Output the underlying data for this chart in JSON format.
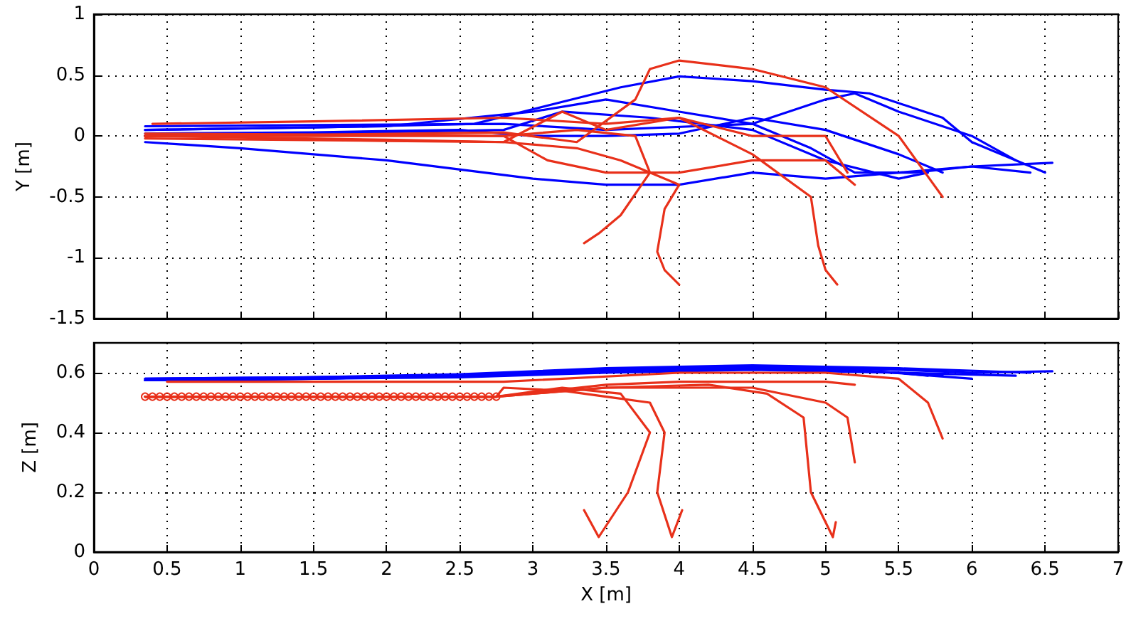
{
  "chart_data": [
    {
      "type": "line",
      "ylabel": "Y [m]",
      "xlim": [
        0,
        7
      ],
      "xticks": [
        0,
        0.5,
        1,
        1.5,
        2,
        2.5,
        3,
        3.5,
        4,
        4.5,
        5,
        5.5,
        6,
        6.5,
        7
      ],
      "ylim": [
        -1.5,
        1
      ],
      "yticks": [
        -1.5,
        -1,
        -0.5,
        0,
        0.5,
        1
      ],
      "tick_labels": "y",
      "grid": true,
      "marker": "none",
      "line_style": "solid",
      "series": [
        {
          "color": "#0000ff",
          "x": [
            0.35,
            1.5,
            2.6,
            3.2,
            3.6,
            4.0,
            4.5,
            5.0,
            5.3,
            5.8,
            6.0,
            6.5
          ],
          "values": [
            0.05,
            0.07,
            0.1,
            0.28,
            0.4,
            0.49,
            0.45,
            0.38,
            0.35,
            0.15,
            -0.05,
            -0.3
          ]
        },
        {
          "color": "#0000ff",
          "x": [
            0.35,
            2.0,
            3.0,
            3.5,
            4.0,
            4.5,
            5.0,
            5.2,
            5.5,
            6.0,
            6.3
          ],
          "values": [
            0.05,
            0.08,
            0.2,
            0.3,
            0.2,
            0.1,
            0.3,
            0.35,
            0.2,
            0,
            -0.2
          ]
        },
        {
          "color": "#0000ff",
          "x": [
            0.35,
            1.0,
            2.0,
            3.0,
            3.5,
            4.0,
            4.5,
            5.0,
            5.5,
            6.0,
            6.55
          ],
          "values": [
            -0.05,
            -0.1,
            -0.2,
            -0.35,
            -0.4,
            -0.4,
            -0.3,
            -0.35,
            -0.3,
            -0.25,
            -0.22
          ]
        },
        {
          "color": "#0000ff",
          "x": [
            0.35,
            1.5,
            2.5,
            3.0,
            3.5,
            4.0,
            4.5,
            5.0,
            5.5,
            5.8
          ],
          "values": [
            0.02,
            0.03,
            0.05,
            0.0,
            0.0,
            0.02,
            0.15,
            0.05,
            -0.15,
            -0.3
          ]
        },
        {
          "color": "#0000ff",
          "x": [
            0.35,
            1.5,
            2.8,
            3.2,
            3.8,
            4.5,
            5.0,
            5.5,
            5.7
          ],
          "values": [
            0.0,
            0.02,
            0.05,
            0.2,
            0.15,
            0.05,
            -0.2,
            -0.35,
            -0.3
          ]
        },
        {
          "color": "#0000ff",
          "x": [
            0.35,
            1.5,
            2.8,
            3.5,
            4.5,
            4.9,
            5.2,
            5.6,
            6.0,
            6.4
          ],
          "values": [
            0.08,
            0.09,
            0.1,
            0.05,
            0.1,
            -0.1,
            -0.3,
            -0.3,
            -0.25,
            -0.3
          ]
        },
        {
          "color": "#e8301a",
          "x": [
            0.35,
            1.5,
            2.8,
            3.3,
            3.7,
            3.8,
            4.0,
            4.5,
            5.0,
            5.5,
            5.8
          ],
          "values": [
            0.0,
            0.01,
            0.03,
            -0.05,
            0.3,
            0.55,
            0.62,
            0.55,
            0.4,
            0.0,
            -0.5
          ]
        },
        {
          "color": "#e8301a",
          "x": [
            0.35,
            2.0,
            2.8,
            3.3,
            3.6,
            4.0,
            3.9,
            3.85,
            3.9,
            4.0
          ],
          "values": [
            0.0,
            -0.03,
            -0.05,
            -0.1,
            -0.2,
            -0.4,
            -0.6,
            -0.95,
            -1.1,
            -1.22
          ]
        },
        {
          "color": "#e8301a",
          "x": [
            0.35,
            2.0,
            2.8,
            3.3,
            3.7,
            3.8,
            3.6,
            3.45,
            3.35
          ],
          "values": [
            0.02,
            0.01,
            0.0,
            0.05,
            0.0,
            -0.3,
            -0.65,
            -0.8,
            -0.88
          ]
        },
        {
          "color": "#e8301a",
          "x": [
            0.4,
            1.5,
            2.8,
            3.5,
            4.0,
            4.5,
            4.9,
            4.95,
            5.0,
            5.08
          ],
          "values": [
            0.1,
            0.12,
            0.15,
            0.1,
            0.15,
            -0.15,
            -0.5,
            -0.9,
            -1.1,
            -1.22
          ]
        },
        {
          "color": "#e8301a",
          "x": [
            0.35,
            2.0,
            2.8,
            3.1,
            3.5,
            4.0,
            4.5,
            5.0,
            5.1,
            5.2
          ],
          "values": [
            0.0,
            0.0,
            0.0,
            -0.2,
            -0.3,
            -0.3,
            -0.2,
            -0.2,
            -0.3,
            -0.4
          ]
        },
        {
          "color": "#e8301a",
          "x": [
            0.35,
            2.0,
            2.8,
            3.2,
            3.5,
            4.0,
            4.5,
            5.0,
            5.15
          ],
          "values": [
            -0.02,
            -0.04,
            -0.05,
            0.2,
            0.05,
            0.15,
            0.0,
            0.0,
            -0.3
          ]
        }
      ]
    },
    {
      "type": "line",
      "xlabel": "X [m]",
      "ylabel": "Z [m]",
      "xlim": [
        0,
        7
      ],
      "xticks": [
        0,
        0.5,
        1,
        1.5,
        2,
        2.5,
        3,
        3.5,
        4,
        4.5,
        5,
        5.5,
        6,
        6.5,
        7
      ],
      "ylim": [
        0,
        0.7
      ],
      "yticks": [
        0,
        0.2,
        0.4,
        0.6
      ],
      "grid": true,
      "marker": "none",
      "line_style": "solid",
      "series": [
        {
          "color": "#0000ff",
          "x": [
            0.35,
            1.5,
            2.5,
            3.5,
            4.5,
            5.5,
            6.0,
            6.55
          ],
          "values": [
            0.575,
            0.585,
            0.59,
            0.61,
            0.62,
            0.61,
            0.6,
            0.605
          ]
        },
        {
          "color": "#0000ff",
          "x": [
            0.35,
            1.5,
            2.5,
            3.5,
            4.5,
            5.5,
            6.3
          ],
          "values": [
            0.575,
            0.58,
            0.59,
            0.605,
            0.62,
            0.6,
            0.59
          ]
        },
        {
          "color": "#0000ff",
          "x": [
            0.35,
            1.5,
            2.5,
            3.5,
            4.5,
            5.5,
            6.4
          ],
          "values": [
            0.58,
            0.585,
            0.595,
            0.615,
            0.625,
            0.615,
            0.6
          ]
        },
        {
          "color": "#0000ff",
          "x": [
            0.35,
            1.5,
            2.5,
            3.5,
            4.5,
            5.5,
            5.8
          ],
          "values": [
            0.575,
            0.58,
            0.585,
            0.6,
            0.61,
            0.6,
            0.59
          ]
        },
        {
          "color": "#0000ff",
          "x": [
            0.35,
            1.5,
            2.5,
            3.5,
            4.5,
            5.5,
            5.7
          ],
          "values": [
            0.58,
            0.585,
            0.59,
            0.605,
            0.615,
            0.6,
            0.59
          ]
        },
        {
          "color": "#0000ff",
          "x": [
            0.35,
            1.5,
            2.5,
            3.5,
            4.5,
            5.2,
            6.0
          ],
          "values": [
            0.575,
            0.58,
            0.59,
            0.61,
            0.62,
            0.61,
            0.58
          ]
        },
        {
          "color": "#e8301a",
          "x": [
            0.5,
            1.5,
            2.8,
            4.0,
            5.0,
            5.5,
            5.7,
            5.8
          ],
          "values": [
            0.57,
            0.57,
            0.57,
            0.6,
            0.6,
            0.58,
            0.5,
            0.38
          ]
        },
        {
          "color": "#e8301a",
          "marker": "circle",
          "x": [
            0.35,
            0.4,
            0.45,
            0.5,
            0.55,
            0.6,
            0.65,
            0.7,
            0.75,
            0.8,
            0.85,
            0.9,
            0.95,
            1.0,
            1.05,
            1.1,
            1.15,
            1.2,
            1.25,
            1.3,
            1.35,
            1.4,
            1.45,
            1.5,
            1.55,
            1.6,
            1.65,
            1.7,
            1.75,
            1.8,
            1.85,
            1.9,
            1.95,
            2.0,
            2.05,
            2.1,
            2.15,
            2.2,
            2.25,
            2.3,
            2.35,
            2.4,
            2.45,
            2.5,
            2.55,
            2.6,
            2.65,
            2.7,
            2.75
          ],
          "values": [
            0.52,
            0.52,
            0.52,
            0.52,
            0.52,
            0.52,
            0.52,
            0.52,
            0.52,
            0.52,
            0.52,
            0.52,
            0.52,
            0.52,
            0.52,
            0.52,
            0.52,
            0.52,
            0.52,
            0.52,
            0.52,
            0.52,
            0.52,
            0.52,
            0.52,
            0.52,
            0.52,
            0.52,
            0.52,
            0.52,
            0.52,
            0.52,
            0.52,
            0.52,
            0.52,
            0.52,
            0.52,
            0.52,
            0.52,
            0.52,
            0.52,
            0.52,
            0.52,
            0.52,
            0.52,
            0.52,
            0.52,
            0.52,
            0.52
          ]
        },
        {
          "color": "#e8301a",
          "x": [
            0.35,
            2.75,
            2.8,
            3.2,
            3.5,
            3.8,
            3.9,
            3.85,
            3.95,
            4.02
          ],
          "values": [
            0.52,
            0.52,
            0.55,
            0.54,
            0.52,
            0.5,
            0.4,
            0.2,
            0.05,
            0.14
          ]
        },
        {
          "color": "#e8301a",
          "x": [
            0.35,
            2.75,
            3.2,
            3.6,
            3.8,
            3.65,
            3.45,
            3.35
          ],
          "values": [
            0.52,
            0.52,
            0.55,
            0.53,
            0.4,
            0.2,
            0.05,
            0.14
          ]
        },
        {
          "color": "#e8301a",
          "x": [
            0.35,
            2.75,
            3.5,
            4.2,
            4.6,
            4.85,
            4.9,
            5.05,
            5.07
          ],
          "values": [
            0.52,
            0.52,
            0.55,
            0.56,
            0.53,
            0.45,
            0.2,
            0.05,
            0.1
          ]
        },
        {
          "color": "#e8301a",
          "x": [
            0.35,
            2.75,
            3.5,
            4.5,
            5.0,
            5.15,
            5.2
          ],
          "values": [
            0.52,
            0.52,
            0.55,
            0.55,
            0.5,
            0.45,
            0.3
          ]
        },
        {
          "color": "#e8301a",
          "x": [
            0.35,
            2.75,
            3.5,
            4.0,
            5.0,
            5.2
          ],
          "values": [
            0.52,
            0.52,
            0.56,
            0.57,
            0.57,
            0.56
          ]
        }
      ]
    }
  ]
}
